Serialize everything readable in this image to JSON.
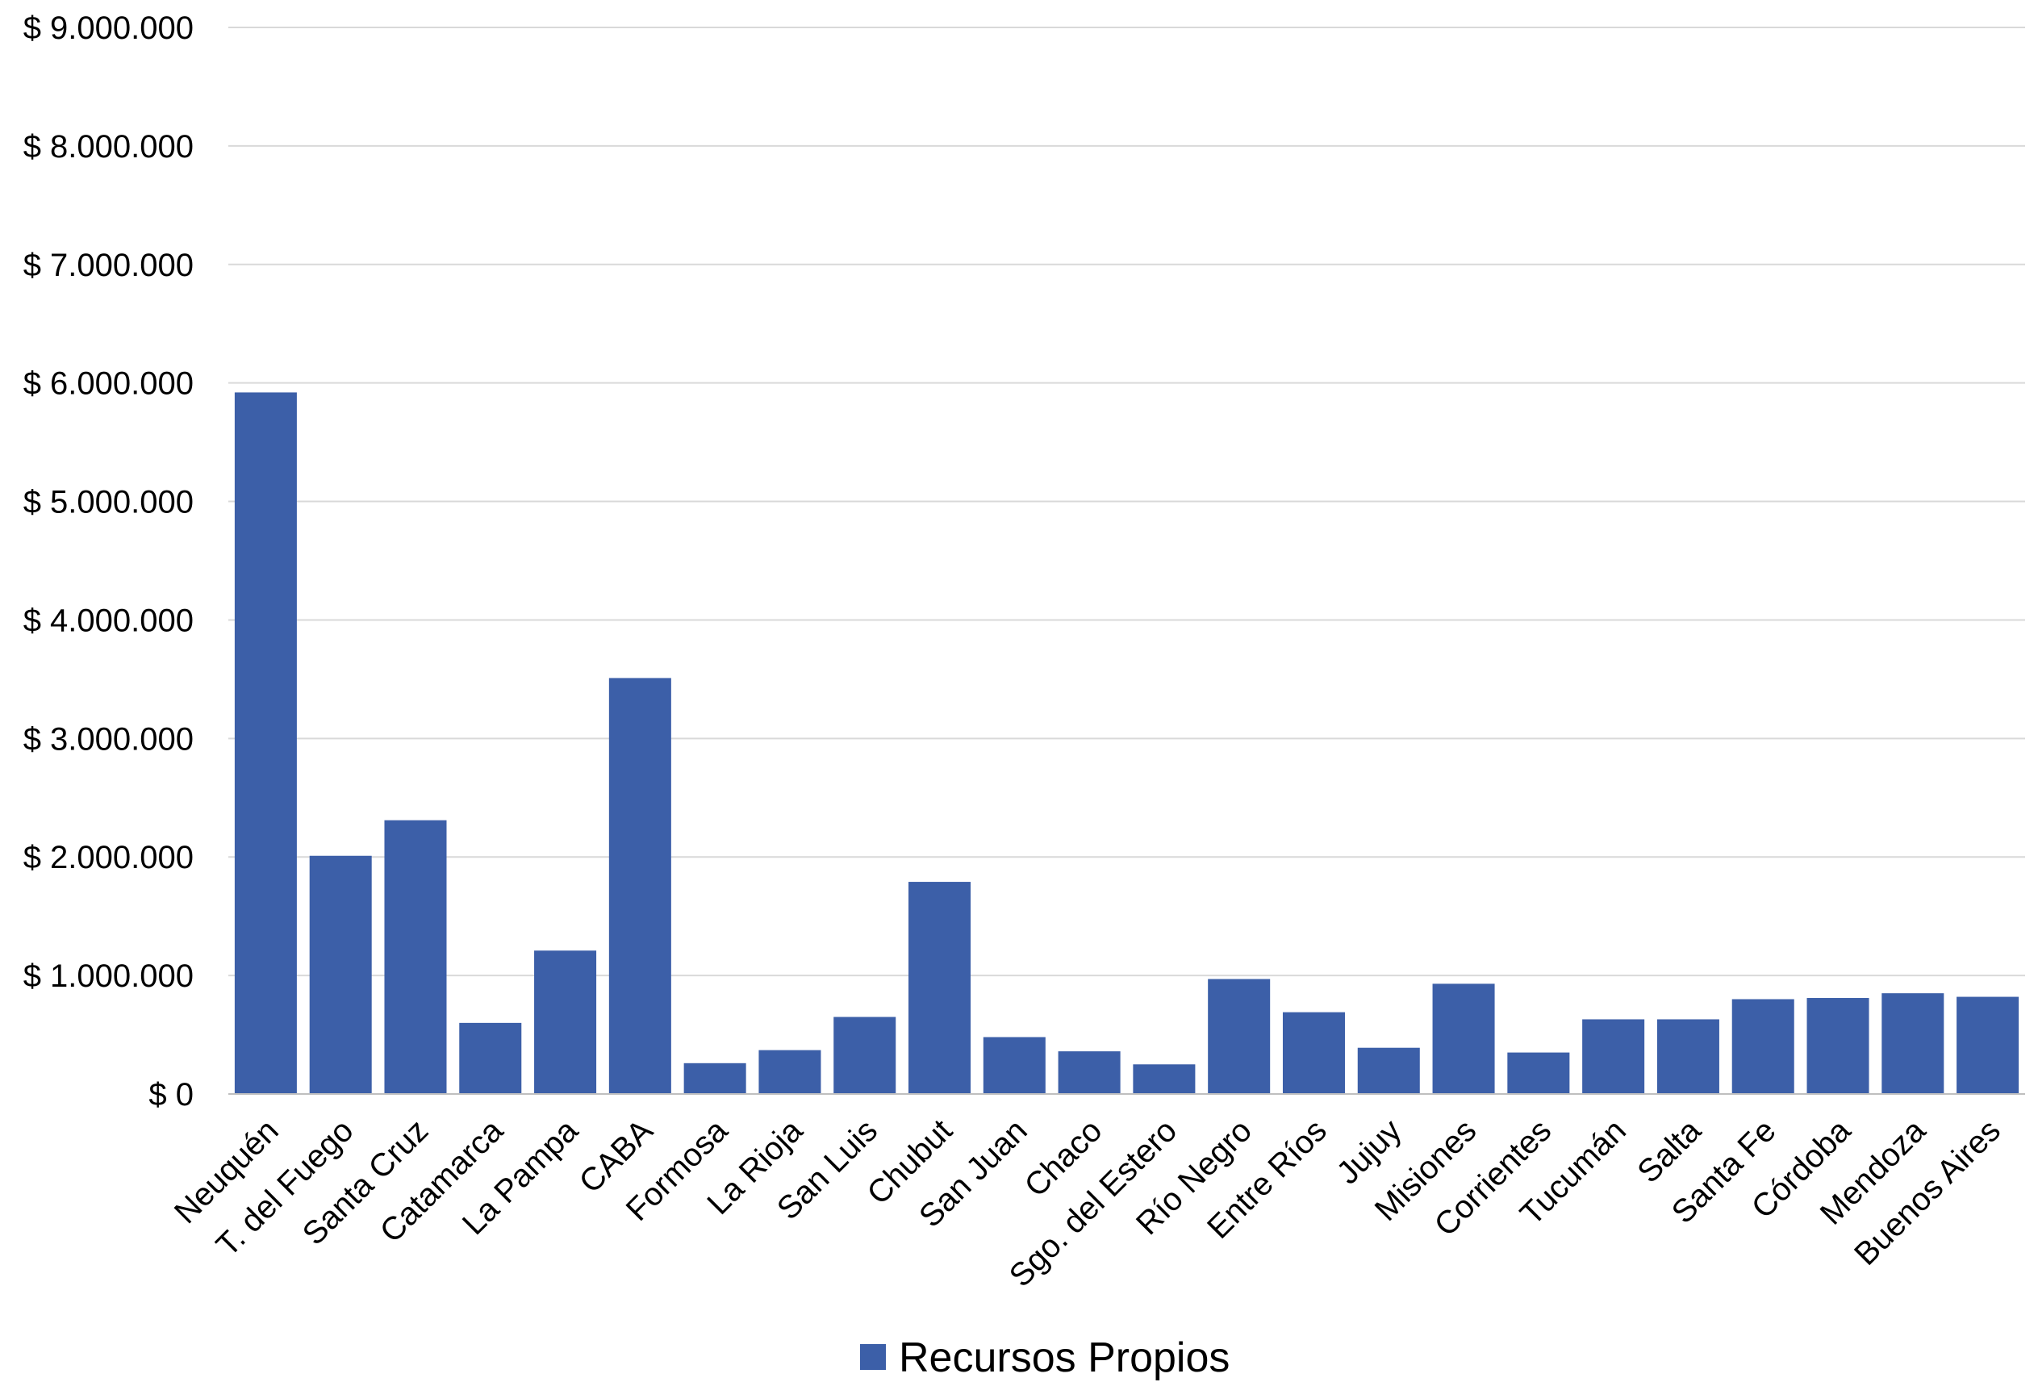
{
  "colors": {
    "bar": "#3C5FA8",
    "grid": "#D9D9D9",
    "axis": "#BFBFBF",
    "text": "#000000"
  },
  "chart_data": {
    "type": "bar",
    "title": "",
    "xlabel": "",
    "ylabel": "",
    "ylim": [
      0,
      9000000
    ],
    "y_ticks": [
      0,
      1000000,
      2000000,
      3000000,
      4000000,
      5000000,
      6000000,
      7000000,
      8000000,
      9000000
    ],
    "y_tick_labels": [
      "$ 0",
      "$ 1.000.000",
      "$ 2.000.000",
      "$ 3.000.000",
      "$ 4.000.000",
      "$ 5.000.000",
      "$ 6.000.000",
      "$ 7.000.000",
      "$ 8.000.000",
      "$ 9.000.000"
    ],
    "grid": true,
    "legend_position": "bottom",
    "categories": [
      "Neuquén",
      "T. del Fuego",
      "Santa Cruz",
      "Catamarca",
      "La Pampa",
      "CABA",
      "Formosa",
      "La Rioja",
      "San Luis",
      "Chubut",
      "San Juan",
      "Chaco",
      "Sgo. del Estero",
      "Río Negro",
      "Entre Ríos",
      "Jujuy",
      "Misiones",
      "Corrientes",
      "Tucumán",
      "Salta",
      "Santa Fe",
      "Córdoba",
      "Mendoza",
      "Buenos Aires"
    ],
    "series": [
      {
        "name": "Recursos Propios",
        "values": [
          5920000,
          2010000,
          2310000,
          600000,
          1210000,
          3510000,
          260000,
          370000,
          650000,
          1790000,
          480000,
          360000,
          250000,
          970000,
          690000,
          390000,
          930000,
          350000,
          630000,
          630000,
          800000,
          810000,
          850000,
          820000
        ]
      }
    ]
  }
}
